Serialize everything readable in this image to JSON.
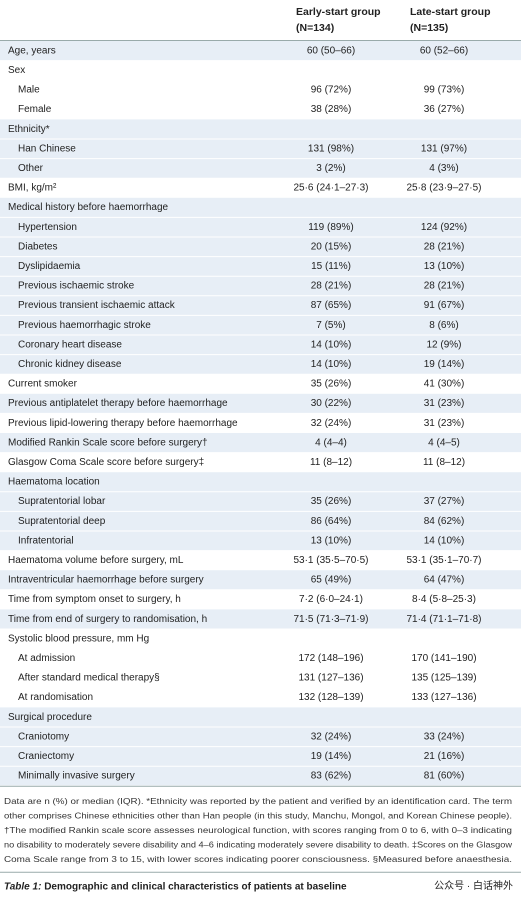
{
  "table": {
    "columns": [
      {
        "name": "Early-start group",
        "n": "(N=134)"
      },
      {
        "name": "Late-start group",
        "n": "(N=135)"
      }
    ],
    "groups": [
      {
        "label": "Age, years",
        "values": [
          "60 (50–66)",
          "60 (52–66)"
        ]
      },
      {
        "label": "Sex",
        "items": [
          {
            "label": "Male",
            "values": [
              "96 (72%)",
              "99 (73%)"
            ]
          },
          {
            "label": "Female",
            "values": [
              "38 (28%)",
              "36 (27%)"
            ]
          }
        ]
      },
      {
        "label": "Ethnicity*",
        "items": [
          {
            "label": "Han Chinese",
            "values": [
              "131 (98%)",
              "131 (97%)"
            ]
          },
          {
            "label": "Other",
            "values": [
              "3 (2%)",
              "4 (3%)"
            ]
          }
        ]
      },
      {
        "label": "BMI, kg/m²",
        "values": [
          "25·6 (24·1–27·3)",
          "25·8 (23·9–27·5)"
        ]
      },
      {
        "label": "Medical history before haemorrhage",
        "items": [
          {
            "label": "Hypertension",
            "values": [
              "119 (89%)",
              "124 (92%)"
            ]
          },
          {
            "label": "Diabetes",
            "values": [
              "20 (15%)",
              "28 (21%)"
            ]
          },
          {
            "label": "Dyslipidaemia",
            "values": [
              "15 (11%)",
              "13 (10%)"
            ]
          },
          {
            "label": "Previous ischaemic stroke",
            "values": [
              "28 (21%)",
              "28 (21%)"
            ]
          },
          {
            "label": "Previous transient ischaemic attack",
            "values": [
              "87 (65%)",
              "91 (67%)"
            ]
          },
          {
            "label": "Previous haemorrhagic stroke",
            "values": [
              "7 (5%)",
              "8 (6%)"
            ]
          },
          {
            "label": "Coronary heart disease",
            "values": [
              "14 (10%)",
              "12 (9%)"
            ]
          },
          {
            "label": "Chronic kidney disease",
            "values": [
              "14 (10%)",
              "19 (14%)"
            ]
          }
        ]
      },
      {
        "label": "Current smoker",
        "values": [
          "35 (26%)",
          "41 (30%)"
        ]
      },
      {
        "label": "Previous antiplatelet therapy before haemorrhage",
        "values": [
          "30 (22%)",
          "31 (23%)"
        ]
      },
      {
        "label": "Previous lipid-lowering therapy before haemorrhage",
        "values": [
          "32 (24%)",
          "31 (23%)"
        ]
      },
      {
        "label": "Modified Rankin Scale score before surgery†",
        "values": [
          "4 (4–4)",
          "4 (4–5)"
        ]
      },
      {
        "label": "Glasgow Coma Scale score before surgery‡",
        "values": [
          "11 (8–12)",
          "11 (8–12)"
        ]
      },
      {
        "label": "Haematoma location",
        "items": [
          {
            "label": "Supratentorial lobar",
            "values": [
              "35 (26%)",
              "37 (27%)"
            ]
          },
          {
            "label": "Supratentorial deep",
            "values": [
              "86 (64%)",
              "84 (62%)"
            ]
          },
          {
            "label": "Infratentorial",
            "values": [
              "13 (10%)",
              "14 (10%)"
            ]
          }
        ]
      },
      {
        "label": "Haematoma volume before surgery, mL",
        "values": [
          "53·1 (35·5–70·5)",
          "53·1 (35·1–70·7)"
        ]
      },
      {
        "label": "Intraventricular haemorrhage before surgery",
        "values": [
          "65 (49%)",
          "64 (47%)"
        ]
      },
      {
        "label": "Time from symptom onset to surgery, h",
        "values": [
          "7·2 (6·0–24·1)",
          "8·4 (5·8–25·3)"
        ]
      },
      {
        "label": "Time from end of surgery to randomisation, h",
        "values": [
          "71·5 (71·3–71·9)",
          "71·4 (71·1–71·8)"
        ]
      },
      {
        "label": "Systolic blood pressure, mm Hg",
        "items": [
          {
            "label": "At admission",
            "values": [
              "172 (148–196)",
              "170 (141–190)"
            ]
          },
          {
            "label": "After standard medical therapy§",
            "values": [
              "131 (127–136)",
              "135 (125–139)"
            ]
          },
          {
            "label": "At randomisation",
            "values": [
              "132 (128–139)",
              "133 (127–136)"
            ]
          }
        ]
      },
      {
        "label": "Surgical procedure",
        "items": [
          {
            "label": "Craniotomy",
            "values": [
              "32 (24%)",
              "33 (24%)"
            ]
          },
          {
            "label": "Craniectomy",
            "values": [
              "19 (14%)",
              "21 (16%)"
            ]
          },
          {
            "label": "Minimally invasive surgery",
            "values": [
              "83 (62%)",
              "81 (60%)"
            ]
          }
        ]
      }
    ],
    "footnote": [
      "Data are n (%) or median (IQR). *Ethnicity was reported by the patient and verified by an identification card. The term",
      "other comprises Chinese ethnicities other than Han people (in this study, Manchu, Mongol, and Korean Chinese people).",
      "†The modified Rankin scale score assesses neurological function, with scores ranging from 0 to 6, with 0–3 indicating",
      "no disability to moderately severe disability and 4–6 indicating moderately severe disability to death. ‡Scores on the Glasgow",
      "Coma Scale range from 3 to 15, with lower scores indicating poorer consciousness. §Measured before anaesthesia."
    ],
    "caption": {
      "label": "Table 1:",
      "text": "Demographic and clinical characteristics of patients at baseline"
    },
    "watermark": "公众号 · 白话神外"
  }
}
